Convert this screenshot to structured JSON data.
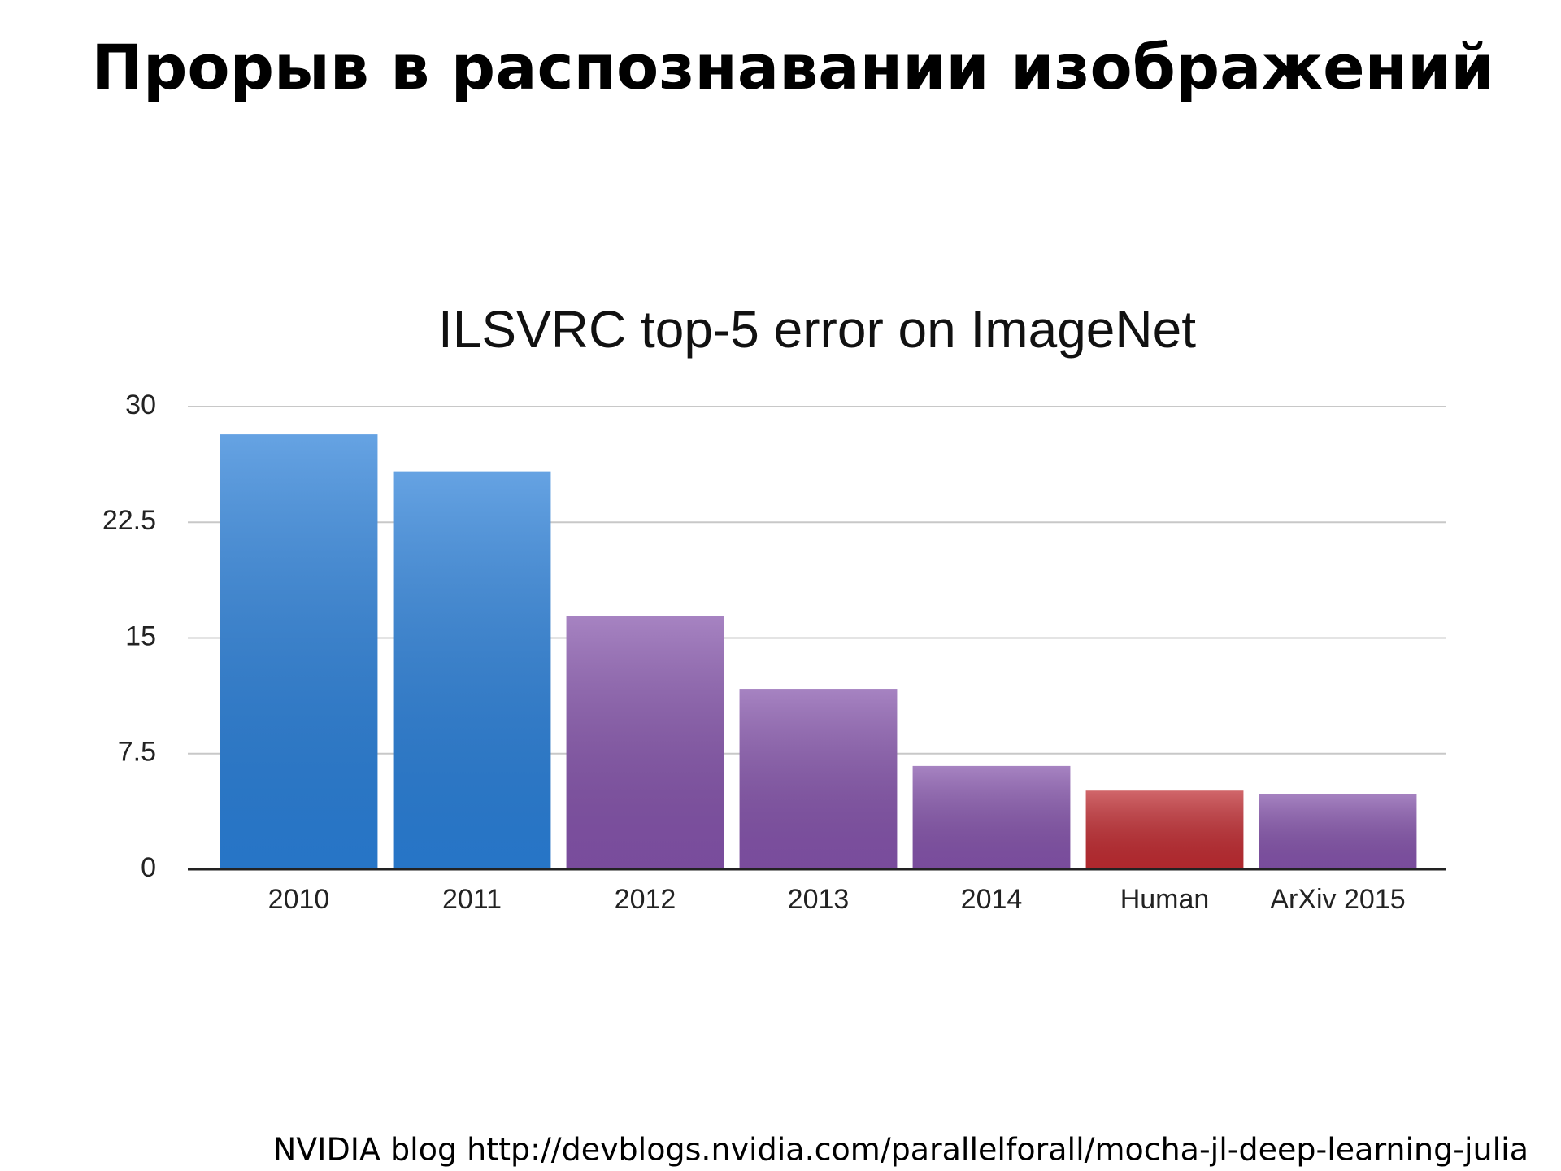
{
  "header": {
    "title": "Прорыв в распознавании изображений"
  },
  "chart_data": {
    "type": "bar",
    "title": "ILSVRC top-5 error on ImageNet",
    "categories": [
      "2010",
      "2011",
      "2012",
      "2013",
      "2014",
      "Human",
      "ArXiv 2015"
    ],
    "values": [
      28.2,
      25.8,
      16.4,
      11.7,
      6.7,
      5.1,
      4.9
    ],
    "colors": [
      "#2a7fd8",
      "#2a7fd8",
      "#8453aa",
      "#8453aa",
      "#8453aa",
      "#bf2b31",
      "#8453aa"
    ],
    "ylim": [
      0,
      30
    ],
    "yticks": [
      0,
      7.5,
      15,
      22.5,
      30
    ],
    "grid": true
  },
  "footer": {
    "source": "NVIDIA blog http://devblogs.nvidia.com/parallelforall/mocha-jl-deep-learning-julia"
  }
}
